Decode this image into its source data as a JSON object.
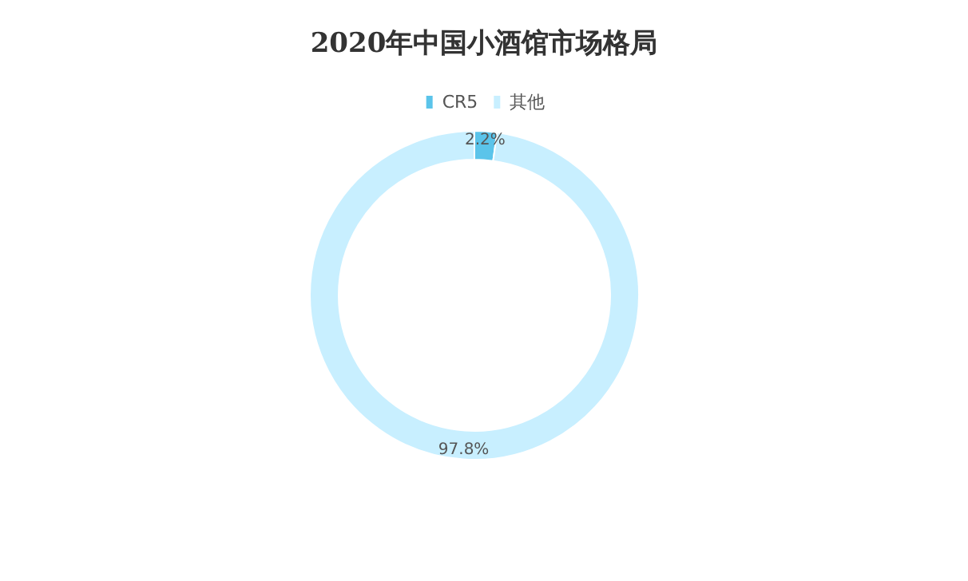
{
  "chart_data": {
    "type": "donut",
    "title": "2020年中国小酒馆市场格局",
    "categories": [
      "CR5",
      "其他"
    ],
    "values": [
      2.2,
      97.8
    ],
    "colors": [
      "#5bc4ea",
      "#c8efff"
    ],
    "value_labels": [
      "2.2%",
      "97.8%"
    ],
    "legend": "top"
  }
}
